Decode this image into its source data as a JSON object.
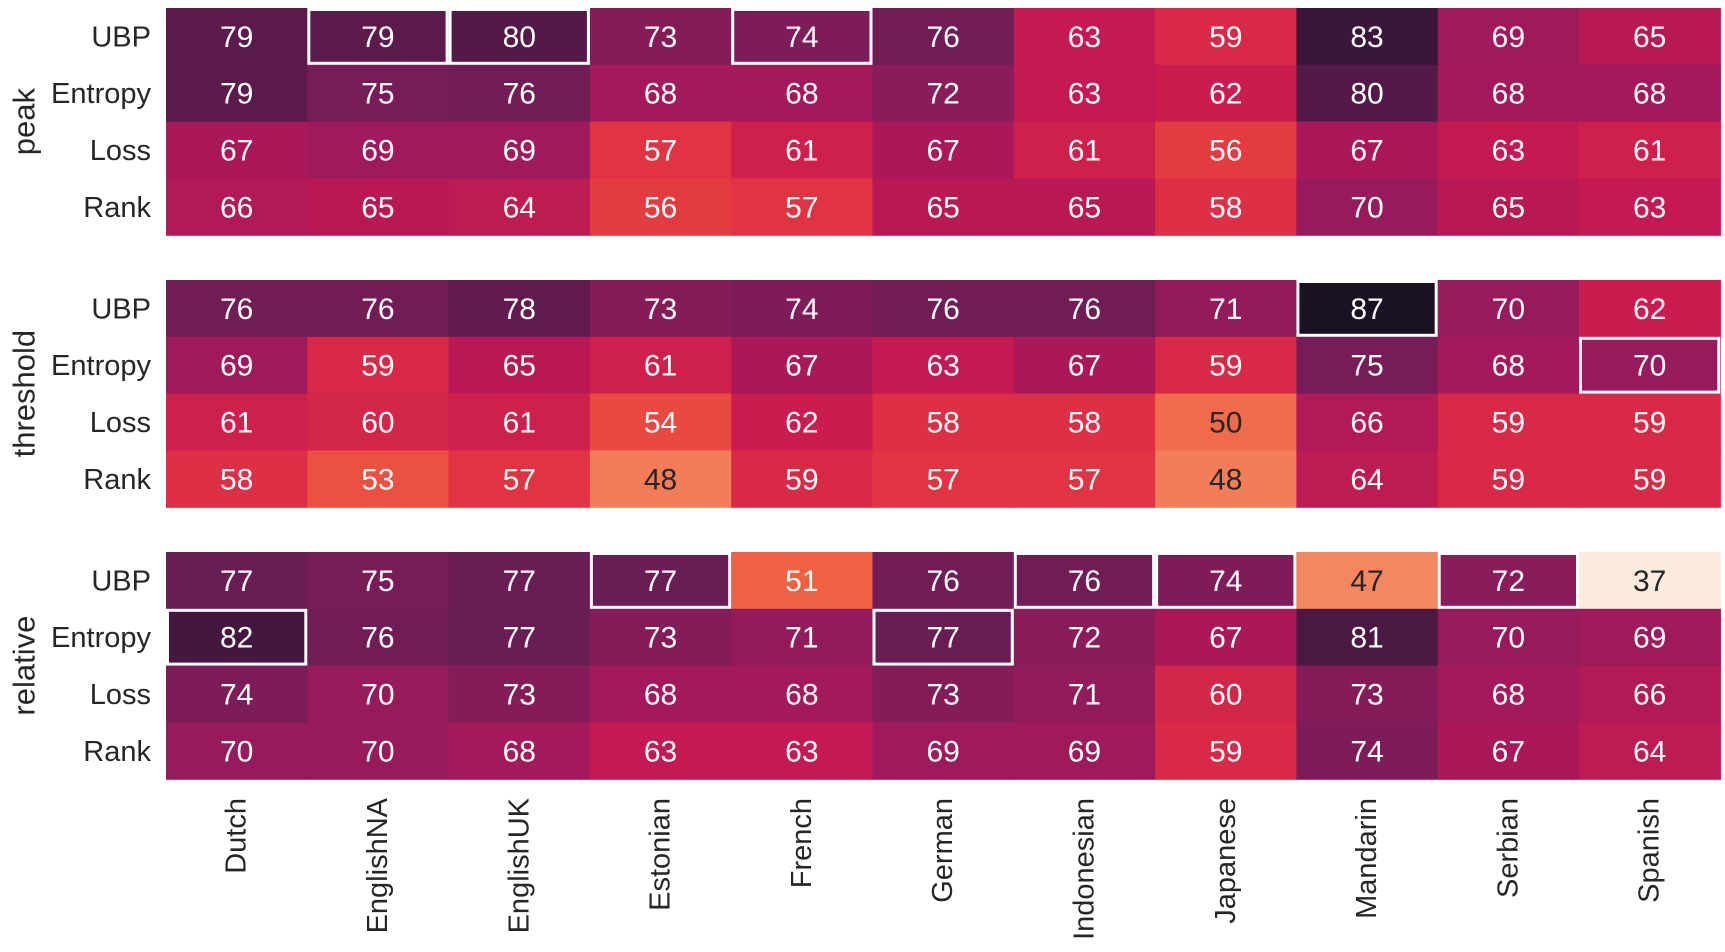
{
  "chart_data": {
    "type": "heatmap",
    "title": "",
    "colormap": "rocket",
    "value_range": [
      37,
      87
    ],
    "columns": [
      "Dutch",
      "EnglishNA",
      "EnglishUK",
      "Estonian",
      "French",
      "German",
      "Indonesian",
      "Japanese",
      "Mandarin",
      "Serbian",
      "Spanish"
    ],
    "row_labels": [
      "UBP",
      "Entropy",
      "Loss",
      "Rank"
    ],
    "groups": [
      {
        "name": "peak",
        "values": [
          [
            79,
            79,
            80,
            73,
            74,
            76,
            63,
            59,
            83,
            69,
            65
          ],
          [
            79,
            75,
            76,
            68,
            68,
            72,
            63,
            62,
            80,
            68,
            68
          ],
          [
            67,
            69,
            69,
            57,
            61,
            67,
            61,
            56,
            67,
            63,
            61
          ],
          [
            66,
            65,
            64,
            56,
            57,
            65,
            65,
            58,
            70,
            65,
            63
          ]
        ],
        "highlighted": [
          [
            "UBP",
            "EnglishNA"
          ],
          [
            "UBP",
            "EnglishUK"
          ],
          [
            "UBP",
            "French"
          ]
        ]
      },
      {
        "name": "threshold",
        "values": [
          [
            76,
            76,
            78,
            73,
            74,
            76,
            76,
            71,
            87,
            70,
            62
          ],
          [
            69,
            59,
            65,
            61,
            67,
            63,
            67,
            59,
            75,
            68,
            70
          ],
          [
            61,
            60,
            61,
            54,
            62,
            58,
            58,
            50,
            66,
            59,
            59
          ],
          [
            58,
            53,
            57,
            48,
            59,
            57,
            57,
            48,
            64,
            59,
            59
          ]
        ],
        "highlighted": [
          [
            "UBP",
            "Mandarin"
          ],
          [
            "Entropy",
            "Spanish"
          ]
        ]
      },
      {
        "name": "relative",
        "values": [
          [
            77,
            75,
            77,
            77,
            51,
            76,
            76,
            74,
            47,
            72,
            37
          ],
          [
            82,
            76,
            77,
            73,
            71,
            77,
            72,
            67,
            81,
            70,
            69
          ],
          [
            74,
            70,
            73,
            68,
            68,
            73,
            71,
            60,
            73,
            68,
            66
          ],
          [
            70,
            70,
            68,
            63,
            63,
            69,
            69,
            59,
            74,
            67,
            64
          ]
        ],
        "highlighted": [
          [
            "UBP",
            "Estonian"
          ],
          [
            "UBP",
            "Indonesian"
          ],
          [
            "UBP",
            "Japanese"
          ],
          [
            "UBP",
            "Serbian"
          ],
          [
            "Entropy",
            "Dutch"
          ],
          [
            "Entropy",
            "German"
          ]
        ]
      }
    ]
  }
}
